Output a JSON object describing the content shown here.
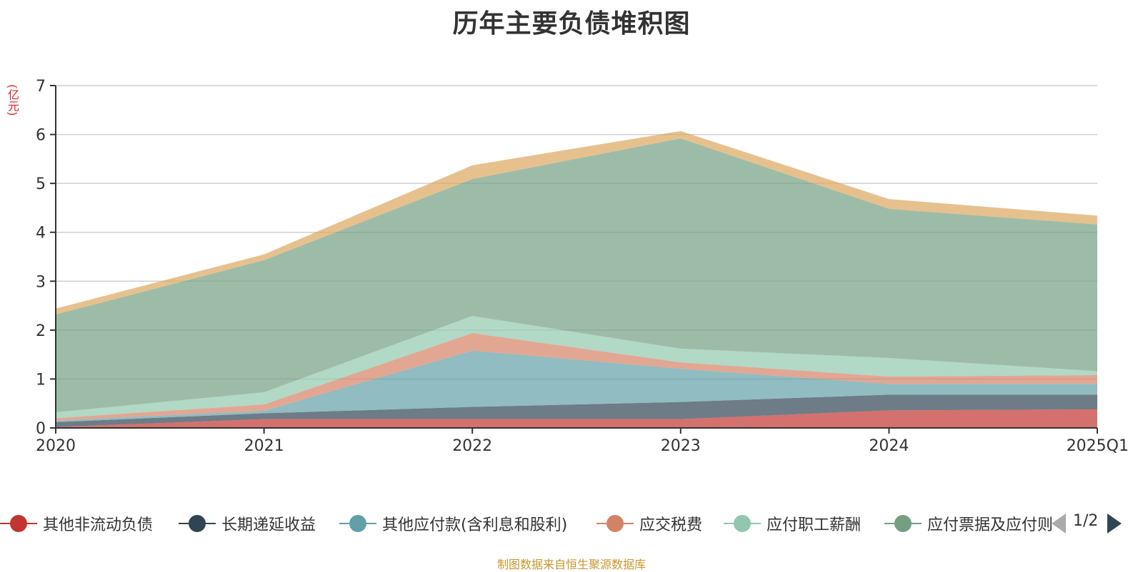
{
  "title": "历年主要负债堆积图",
  "unit_label": "(亿元)",
  "footer": "制图数据来自恒生聚源数据库",
  "legend_pager": {
    "text": "1/2"
  },
  "legend_visible": [
    {
      "name": "其他非流动负债",
      "color": "#c23531"
    },
    {
      "name": "长期递延收益",
      "color": "#2f4554"
    },
    {
      "name": "其他应付款(含利息和股利)",
      "color": "#61a0a8"
    },
    {
      "name": "应交税费",
      "color": "#d48265"
    },
    {
      "name": "应付职工薪酬",
      "color": "#91c7ae"
    },
    {
      "name": "应付票据及应付账款",
      "color": "#749f83",
      "display": "应付票据及应付则"
    }
  ],
  "chart_data": {
    "type": "area",
    "stacked": true,
    "title": "历年主要负债堆积图",
    "ylabel": "(亿元)",
    "categories": [
      "2020",
      "2021",
      "2022",
      "2023",
      "2024",
      "2025Q1"
    ],
    "ylim": [
      0,
      7
    ],
    "yticks": [
      0,
      1,
      2,
      3,
      4,
      5,
      6,
      7
    ],
    "grid": true,
    "legend_position": "bottom",
    "series": [
      {
        "name": "其他非流动负债",
        "color": "#c23531",
        "values": [
          0.02,
          0.18,
          0.18,
          0.18,
          0.36,
          0.38
        ]
      },
      {
        "name": "长期递延收益",
        "color": "#2f4554",
        "values": [
          0.1,
          0.12,
          0.25,
          0.35,
          0.32,
          0.3
        ]
      },
      {
        "name": "其他应付款(含利息和股利)",
        "color": "#61a0a8",
        "values": [
          0.03,
          0.05,
          1.15,
          0.68,
          0.22,
          0.22
        ]
      },
      {
        "name": "应交税费",
        "color": "#d48265",
        "values": [
          0.05,
          0.13,
          0.36,
          0.13,
          0.15,
          0.18
        ]
      },
      {
        "name": "应付职工薪酬",
        "color": "#91c7ae",
        "values": [
          0.12,
          0.25,
          0.35,
          0.28,
          0.38,
          0.08
        ]
      },
      {
        "name": "应付票据及应付账款",
        "color": "#749f83",
        "values": [
          2.0,
          2.7,
          2.8,
          4.3,
          3.05,
          3.0
        ]
      },
      {
        "name": "",
        "color": "#dca65e",
        "values": [
          0.12,
          0.12,
          0.28,
          0.15,
          0.2,
          0.18
        ]
      }
    ]
  }
}
